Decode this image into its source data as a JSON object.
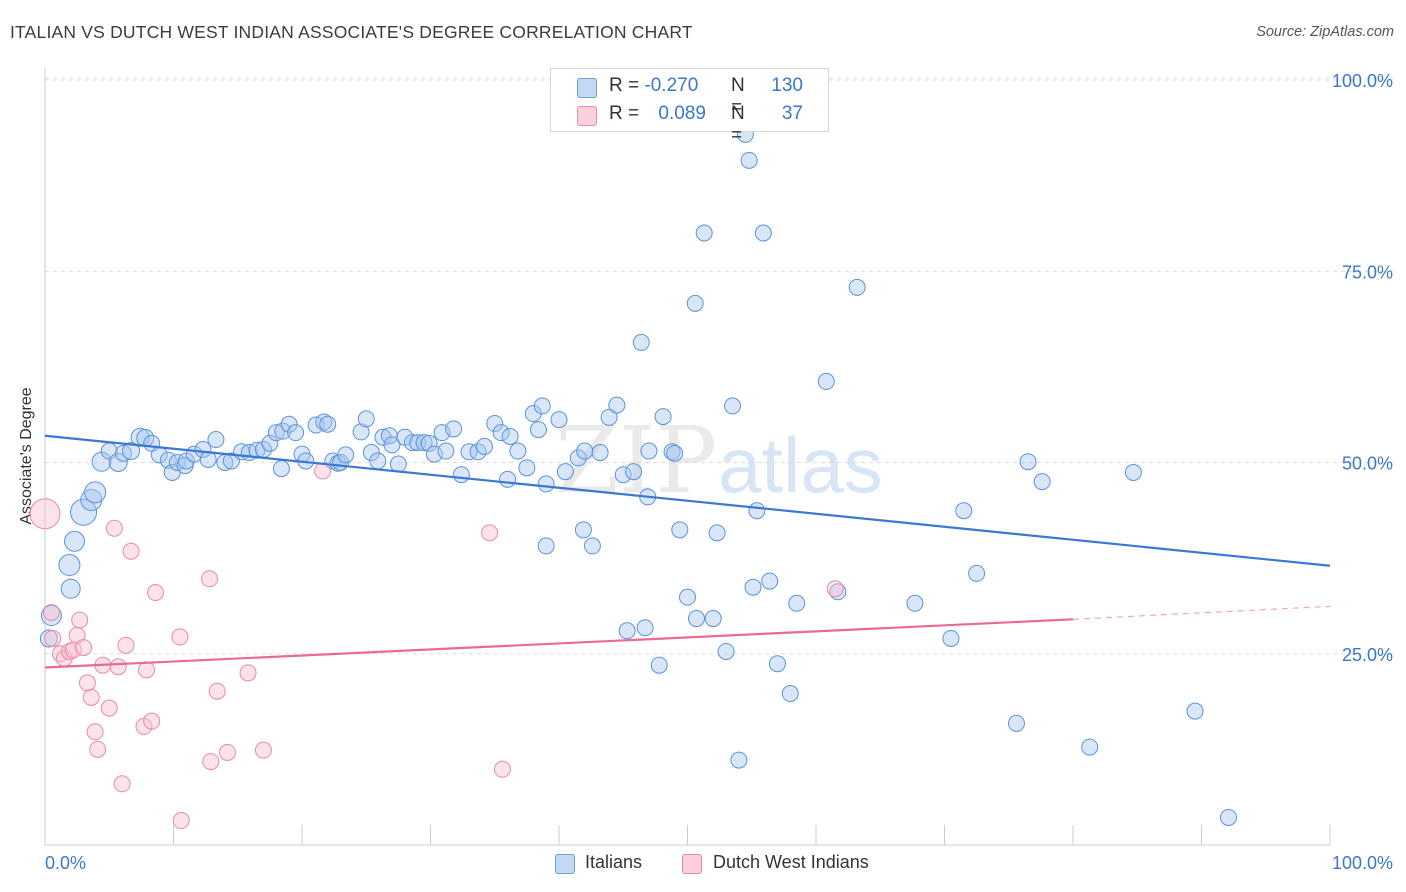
{
  "header": {
    "title": "ITALIAN VS DUTCH WEST INDIAN ASSOCIATE'S DEGREE CORRELATION CHART",
    "source": "Source: ZipAtlas.com"
  },
  "legend": {
    "r_label": "R =",
    "n_label": "N =",
    "rows": [
      {
        "r": "-0.270",
        "n": "130",
        "color": "#a8c8f0",
        "border": "#6a9ee0"
      },
      {
        "r": "0.089",
        "n": "37",
        "color": "#f8c0d0",
        "border": "#e88aa8"
      }
    ]
  },
  "bottom_legend": [
    {
      "label": "Italians",
      "color": "#a8c8f0",
      "border": "#6a9ee0"
    },
    {
      "label": "Dutch West Indians",
      "color": "#f8c0d0",
      "border": "#e88aa8"
    }
  ],
  "watermark": {
    "zip": "ZIP",
    "atlas": "atlas"
  },
  "chart_data": {
    "type": "scatter",
    "title": "ITALIAN VS DUTCH WEST INDIAN ASSOCIATE'S DEGREE CORRELATION CHART",
    "xlabel": "",
    "ylabel": "Associate's Degree",
    "xlim": [
      0,
      100
    ],
    "ylim": [
      0,
      100
    ],
    "x_tick_labels": [
      "0.0%",
      "100.0%"
    ],
    "y_tick_labels": [
      "25.0%",
      "50.0%",
      "75.0%",
      "100.0%"
    ],
    "y_ticks": [
      25,
      50,
      75,
      100
    ],
    "grid": true,
    "legend_position": "top-center",
    "colors": {
      "italians": "#3a78d4",
      "dutch": "#e86a96",
      "axis_text": "#3a78c9"
    },
    "series": [
      {
        "name": "Italians",
        "trend": {
          "x0": 0,
          "y0": 53.5,
          "x1": 100,
          "y1": 36.5
        },
        "points": [
          [
            0.5,
            30,
            16
          ],
          [
            0.3,
            27,
            13
          ],
          [
            2,
            33.5,
            15
          ],
          [
            1.9,
            36.6,
            17
          ],
          [
            2.3,
            39.7,
            16
          ],
          [
            3,
            43.5,
            22
          ],
          [
            3.6,
            45.1,
            17
          ],
          [
            3.9,
            46.1,
            17
          ],
          [
            4.4,
            50.1,
            15
          ],
          [
            5,
            51.5,
            12
          ],
          [
            5.7,
            50,
            14
          ],
          [
            6.1,
            51.2,
            12
          ],
          [
            6.7,
            51.5,
            13
          ],
          [
            7.4,
            53.3,
            14
          ],
          [
            7.8,
            53.2,
            13
          ],
          [
            8.3,
            52.5,
            12
          ],
          [
            8.9,
            51,
            12
          ],
          [
            9.6,
            50.3,
            12
          ],
          [
            9.9,
            48.7,
            12
          ],
          [
            10.3,
            50,
            12
          ],
          [
            10.9,
            49.6,
            12
          ],
          [
            11,
            50.2,
            12
          ],
          [
            11.6,
            51.1,
            12
          ],
          [
            12.3,
            51.7,
            12
          ],
          [
            12.7,
            50.4,
            12
          ],
          [
            13.3,
            53,
            12
          ],
          [
            14,
            50,
            12
          ],
          [
            14.5,
            50.2,
            12
          ],
          [
            15.3,
            51.4,
            12
          ],
          [
            15.9,
            51.3,
            12
          ],
          [
            16.5,
            51.6,
            12
          ],
          [
            17,
            51.7,
            12
          ],
          [
            17.5,
            52.5,
            12
          ],
          [
            18,
            53.9,
            12
          ],
          [
            18.5,
            54.1,
            12
          ],
          [
            18.4,
            49.2,
            12
          ],
          [
            19,
            55,
            12
          ],
          [
            19.5,
            53.9,
            12
          ],
          [
            20,
            51.1,
            12
          ],
          [
            20.3,
            50.2,
            12
          ],
          [
            21.1,
            54.9,
            12
          ],
          [
            21.7,
            55.3,
            12
          ],
          [
            22,
            55,
            12
          ],
          [
            22.4,
            50.2,
            12
          ],
          [
            22.8,
            49.9,
            12
          ],
          [
            23,
            50,
            12
          ],
          [
            23.4,
            51,
            12
          ],
          [
            24.6,
            54,
            12
          ],
          [
            25,
            55.7,
            12
          ],
          [
            25.4,
            51.3,
            12
          ],
          [
            25.9,
            50.2,
            12
          ],
          [
            26.3,
            53.3,
            12
          ],
          [
            26.8,
            53.5,
            12
          ],
          [
            27,
            52.3,
            12
          ],
          [
            27.5,
            49.8,
            12
          ],
          [
            28,
            53.3,
            12
          ],
          [
            28.6,
            52.6,
            12
          ],
          [
            29,
            52.6,
            12
          ],
          [
            29.5,
            52.6,
            12
          ],
          [
            29.9,
            52.5,
            12
          ],
          [
            30.3,
            51.1,
            12
          ],
          [
            30.9,
            53.9,
            12
          ],
          [
            31.2,
            51.5,
            12
          ],
          [
            31.8,
            54.4,
            12
          ],
          [
            32.4,
            48.4,
            12
          ],
          [
            33,
            51.4,
            12
          ],
          [
            33.7,
            51.4,
            12
          ],
          [
            34.2,
            52.1,
            12
          ],
          [
            35,
            55.1,
            12
          ],
          [
            35.5,
            53.9,
            12
          ],
          [
            36,
            47.8,
            12
          ],
          [
            36.2,
            53.4,
            12
          ],
          [
            36.8,
            51.5,
            12
          ],
          [
            37.5,
            49.3,
            12
          ],
          [
            38,
            56.4,
            12
          ],
          [
            38.4,
            54.3,
            12
          ],
          [
            38.7,
            57.4,
            12
          ],
          [
            39,
            47.2,
            12
          ],
          [
            39,
            39.1,
            12
          ],
          [
            40,
            55.6,
            12
          ],
          [
            40.5,
            48.8,
            12
          ],
          [
            41.5,
            50.6,
            12
          ],
          [
            41.9,
            41.2,
            12
          ],
          [
            42,
            51.5,
            12
          ],
          [
            42.6,
            39.1,
            12
          ],
          [
            43.2,
            51.3,
            12
          ],
          [
            43.9,
            55.9,
            12
          ],
          [
            44.5,
            57.5,
            12
          ],
          [
            45,
            48.4,
            12
          ],
          [
            45.3,
            28,
            12
          ],
          [
            45.8,
            48.8,
            12
          ],
          [
            46.4,
            65.7,
            12
          ],
          [
            46.7,
            28.4,
            12
          ],
          [
            46.9,
            45.5,
            12
          ],
          [
            47,
            51.5,
            12
          ],
          [
            47.8,
            23.5,
            12
          ],
          [
            48.1,
            56,
            12
          ],
          [
            48.8,
            51.4,
            12
          ],
          [
            49,
            51.2,
            12
          ],
          [
            49.4,
            41.2,
            12
          ],
          [
            50,
            32.4,
            12
          ],
          [
            50.6,
            70.8,
            12
          ],
          [
            50.7,
            29.6,
            12
          ],
          [
            51.3,
            80,
            12
          ],
          [
            52,
            29.6,
            12
          ],
          [
            52.3,
            40.8,
            12
          ],
          [
            53,
            25.3,
            12
          ],
          [
            53.5,
            57.4,
            12
          ],
          [
            54,
            11.1,
            12
          ],
          [
            54.5,
            92.9,
            12
          ],
          [
            54.8,
            89.5,
            12
          ],
          [
            55.1,
            33.7,
            12
          ],
          [
            55.4,
            43.7,
            12
          ],
          [
            55.9,
            80,
            12
          ],
          [
            56.4,
            34.5,
            12
          ],
          [
            57,
            23.7,
            12
          ],
          [
            58,
            19.8,
            12
          ],
          [
            58.5,
            31.6,
            12
          ],
          [
            60.8,
            60.6,
            12
          ],
          [
            61.7,
            33.1,
            12
          ],
          [
            63.2,
            72.9,
            12
          ],
          [
            67.7,
            31.6,
            12
          ],
          [
            70.5,
            27,
            12
          ],
          [
            71.5,
            43.7,
            12
          ],
          [
            72.5,
            35.5,
            12
          ],
          [
            75.6,
            15.9,
            12
          ],
          [
            76.5,
            50.1,
            12
          ],
          [
            77.6,
            47.5,
            12
          ],
          [
            81.3,
            12.8,
            12
          ],
          [
            84.7,
            48.7,
            12
          ],
          [
            89.5,
            17.5,
            12
          ],
          [
            92.1,
            3.6,
            12
          ]
        ]
      },
      {
        "name": "Dutch West Indians",
        "trend": {
          "x0": 0,
          "y0": 23.2,
          "x1": 80,
          "y1": 29.5,
          "dash_to": 100,
          "dash_y": 31.2
        },
        "points": [
          [
            0,
            43.3,
            26
          ],
          [
            0.5,
            30.4,
            12
          ],
          [
            0.6,
            27,
            12
          ],
          [
            1.2,
            25,
            12
          ],
          [
            1.5,
            24.4,
            12
          ],
          [
            1.9,
            25.3,
            12
          ],
          [
            2.2,
            25.5,
            12
          ],
          [
            2.5,
            27.4,
            12
          ],
          [
            2.7,
            29.4,
            12
          ],
          [
            3,
            25.8,
            12
          ],
          [
            3.3,
            21.2,
            12
          ],
          [
            3.6,
            19.3,
            12
          ],
          [
            3.9,
            14.8,
            12
          ],
          [
            4.1,
            12.5,
            12
          ],
          [
            4.5,
            23.5,
            12
          ],
          [
            5,
            17.9,
            12
          ],
          [
            5.4,
            41.4,
            12
          ],
          [
            5.7,
            23.3,
            12
          ],
          [
            6,
            8,
            12
          ],
          [
            6.3,
            26.1,
            12
          ],
          [
            6.7,
            38.4,
            12
          ],
          [
            7.7,
            15.5,
            12
          ],
          [
            7.9,
            22.9,
            12
          ],
          [
            8.3,
            16.2,
            12
          ],
          [
            8.6,
            33,
            12
          ],
          [
            10.5,
            27.2,
            12
          ],
          [
            10.6,
            3.2,
            12
          ],
          [
            12.8,
            34.8,
            12
          ],
          [
            12.9,
            10.9,
            12
          ],
          [
            13.4,
            20.1,
            12
          ],
          [
            14.2,
            12.1,
            12
          ],
          [
            15.8,
            22.5,
            12
          ],
          [
            17,
            12.4,
            12
          ],
          [
            21.6,
            48.9,
            12
          ],
          [
            34.6,
            40.8,
            12
          ],
          [
            35.6,
            9.9,
            12
          ],
          [
            61.5,
            33.5,
            12
          ]
        ]
      }
    ]
  }
}
